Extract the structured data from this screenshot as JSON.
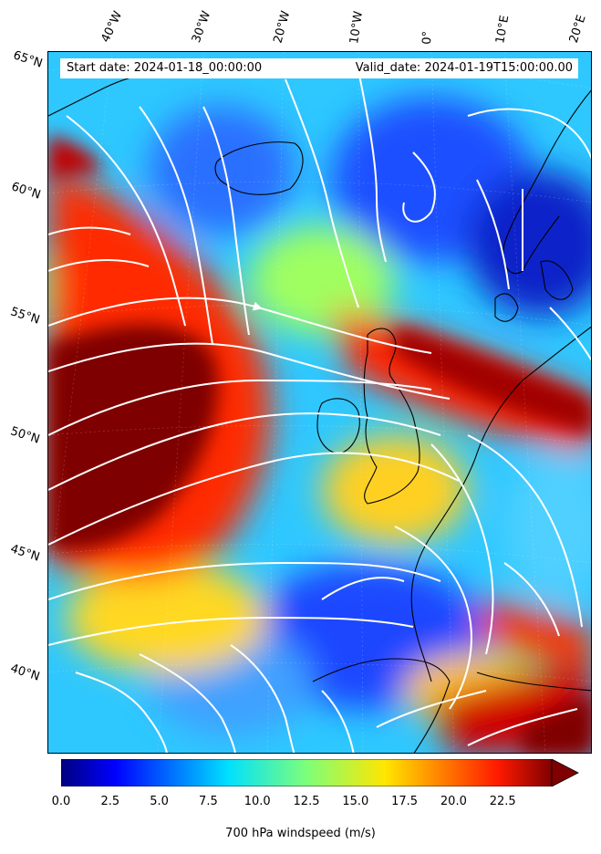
{
  "header": {
    "start_date": "Start date: 2024-01-18_00:00:00",
    "valid_date": "Valid_date: 2024-01-19T15:00:00.00"
  },
  "map": {
    "longitude_labels": [
      "40°W",
      "30°W",
      "20°W",
      "10°W",
      "0°",
      "10°E",
      "20°E"
    ],
    "latitude_labels": [
      "65°N",
      "60°N",
      "55°N",
      "50°N",
      "45°N",
      "40°N"
    ],
    "field": "700 hPa windspeed",
    "streamline_color": "#ffffff",
    "coastline_color": "#000000"
  },
  "colorbar": {
    "label": "700 hPa windspeed (m/s)",
    "colormap": "jet",
    "extend": "max",
    "ticks": [
      "0.0",
      "2.5",
      "5.0",
      "7.5",
      "10.0",
      "12.5",
      "15.0",
      "17.5",
      "20.0",
      "22.5"
    ],
    "vmin": 0,
    "vmax": 25
  }
}
